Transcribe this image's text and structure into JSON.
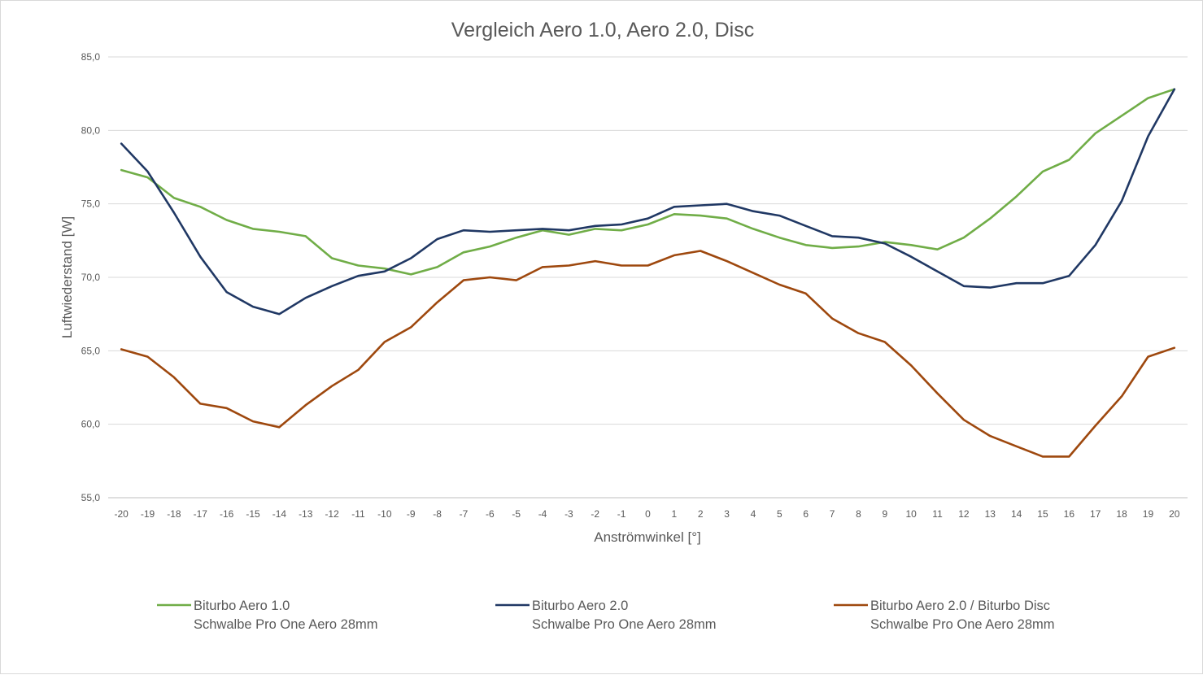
{
  "chart_data": {
    "type": "line",
    "title": "Vergleich Aero 1.0, Aero 2.0, Disc",
    "xlabel": "Anströmwinkel [°]",
    "ylabel": "Luftwiederstand [W]",
    "x": [
      -20,
      -19,
      -18,
      -17,
      -16,
      -15,
      -14,
      -13,
      -12,
      -11,
      -10,
      -9,
      -8,
      -7,
      -6,
      -5,
      -4,
      -3,
      -2,
      -1,
      0,
      1,
      2,
      3,
      4,
      5,
      6,
      7,
      8,
      9,
      10,
      11,
      12,
      13,
      14,
      15,
      16,
      17,
      18,
      19,
      20
    ],
    "ylim": [
      55,
      85
    ],
    "yticks": [
      "55,0",
      "60,0",
      "65,0",
      "70,0",
      "75,0",
      "80,0",
      "85,0"
    ],
    "grid": true,
    "legend_position": "bottom",
    "series": [
      {
        "name": "Biturbo Aero 1.0",
        "name_line2": "Schwalbe Pro One Aero 28mm",
        "color": "#70ad47",
        "values": [
          77.3,
          76.8,
          75.4,
          74.8,
          73.9,
          73.3,
          73.1,
          72.8,
          71.3,
          70.8,
          70.6,
          70.2,
          70.7,
          71.7,
          72.1,
          72.7,
          73.2,
          72.9,
          73.3,
          73.2,
          73.6,
          74.3,
          74.2,
          74.0,
          73.3,
          72.7,
          72.2,
          72.0,
          72.1,
          72.4,
          72.2,
          71.9,
          72.7,
          74.0,
          75.5,
          77.2,
          78.0,
          79.8,
          81.0,
          82.2,
          82.8
        ]
      },
      {
        "name": "Biturbo Aero 2.0",
        "name_line2": "Schwalbe Pro One Aero 28mm",
        "color": "#203864",
        "values": [
          79.1,
          77.2,
          74.4,
          71.4,
          69.0,
          68.0,
          67.5,
          68.6,
          69.4,
          70.1,
          70.4,
          71.3,
          72.6,
          73.2,
          73.1,
          73.2,
          73.3,
          73.2,
          73.5,
          73.6,
          74.0,
          74.8,
          74.9,
          75.0,
          74.5,
          74.2,
          73.5,
          72.8,
          72.7,
          72.3,
          71.4,
          70.4,
          69.4,
          69.3,
          69.6,
          69.6,
          70.1,
          72.2,
          75.2,
          79.6,
          82.8
        ]
      },
      {
        "name": "Biturbo Aero 2.0 / Biturbo Disc",
        "name_line2": "Schwalbe Pro One Aero 28mm",
        "color": "#9e480e",
        "values": [
          65.1,
          64.6,
          63.2,
          61.4,
          61.1,
          60.2,
          59.8,
          61.3,
          62.6,
          63.7,
          65.6,
          66.6,
          68.3,
          69.8,
          70.0,
          69.8,
          70.7,
          70.8,
          71.1,
          70.8,
          70.8,
          71.5,
          71.8,
          71.1,
          70.3,
          69.5,
          68.9,
          67.2,
          66.2,
          65.6,
          64.0,
          62.1,
          60.3,
          59.2,
          58.5,
          57.8,
          57.8,
          59.9,
          61.9,
          64.6,
          65.2
        ]
      }
    ]
  }
}
